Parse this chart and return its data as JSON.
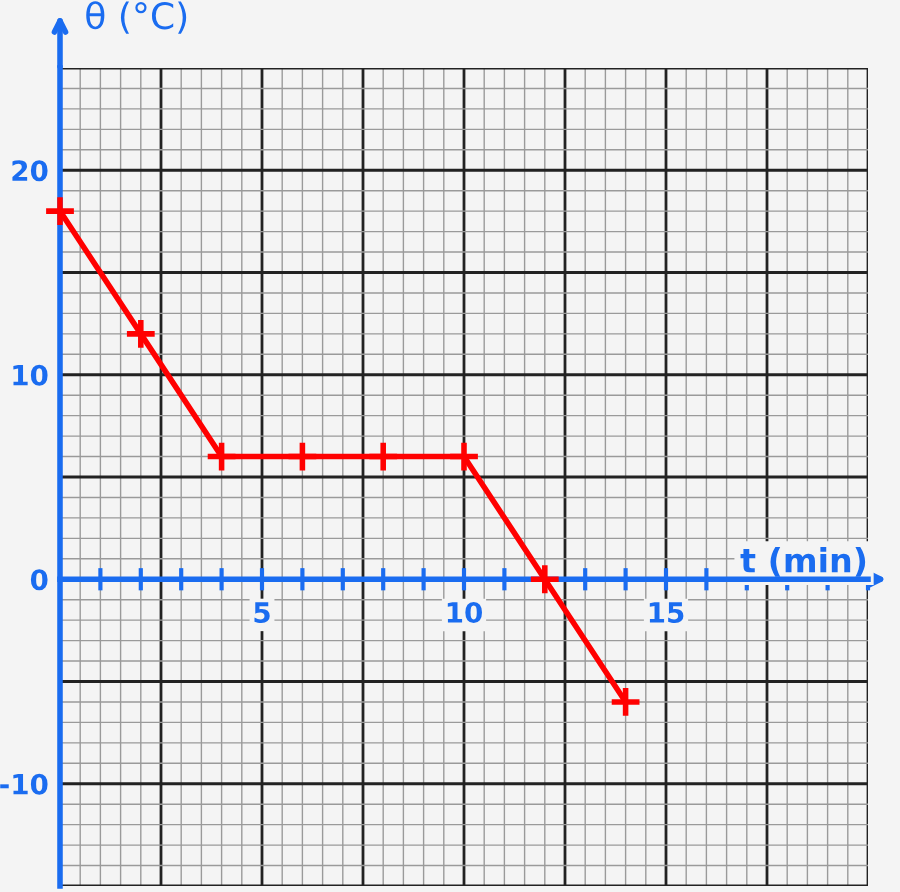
{
  "chart_data": {
    "type": "line",
    "xlabel": "t (min)",
    "ylabel": "θ (°C)",
    "x": [
      0,
      2,
      4,
      6,
      8,
      10,
      12,
      14
    ],
    "series": [
      {
        "color": "#ff0000",
        "values": [
          18,
          12,
          6,
          6,
          6,
          6,
          0,
          -6
        ]
      }
    ],
    "xlim": [
      0,
      20
    ],
    "ylim": [
      -15,
      25
    ],
    "xticks": [
      {
        "value": 1,
        "label": null
      },
      {
        "value": 2,
        "label": null
      },
      {
        "value": 3,
        "label": null
      },
      {
        "value": 4,
        "label": null
      },
      5,
      {
        "value": 6,
        "label": null
      },
      {
        "value": 7,
        "label": null
      },
      {
        "value": 8,
        "label": null
      },
      {
        "value": 9,
        "label": null
      },
      10,
      {
        "value": 11,
        "label": null
      },
      {
        "value": 12,
        "label": null
      },
      {
        "value": 13,
        "label": null
      },
      {
        "value": 14,
        "label": null
      },
      15,
      {
        "value": 16,
        "label": null
      },
      {
        "value": 17,
        "label": null
      },
      {
        "value": 18,
        "label": null
      },
      {
        "value": 19,
        "label": null
      },
      {
        "value": 20,
        "label": null
      }
    ],
    "yticks": [
      -10,
      0,
      10,
      20
    ],
    "grid": true,
    "marker": "cross",
    "line_style": "solid"
  }
}
